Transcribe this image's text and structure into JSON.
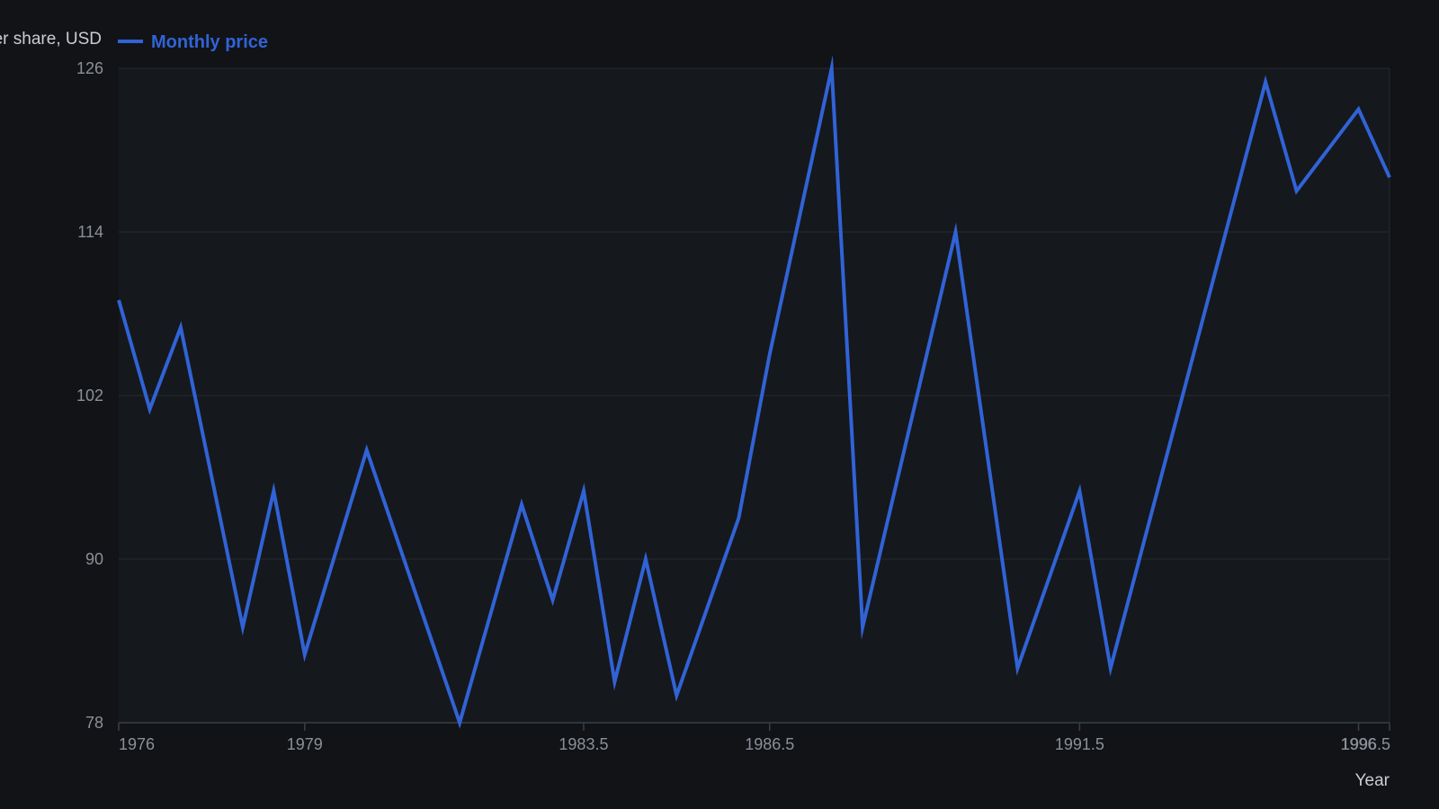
{
  "chart_data": {
    "type": "line",
    "xlabel": "Year",
    "ylabel": "Price per share, USD",
    "ylim": [
      78,
      126
    ],
    "xlim": [
      1976,
      1996.5
    ],
    "y_ticks": [
      78,
      90,
      102,
      114,
      126
    ],
    "x_ticks": [
      1976,
      1979,
      1983.5,
      1986.5,
      1991.5,
      1996,
      1996.5
    ],
    "grid": "horizontal",
    "legend_position": "top-left",
    "colors": {
      "background": "#111317",
      "plot_background": "#15181d",
      "line": "#3163d6",
      "grid": "#262a30",
      "axis": "#3a3f46"
    },
    "series": [
      {
        "name": "Monthly price",
        "x": [
          1976,
          1976.5,
          1977,
          1978,
          1978.5,
          1979,
          1980,
          1981.5,
          1982.5,
          1983,
          1983.5,
          1984,
          1984.5,
          1985,
          1986,
          1986.5,
          1987.5,
          1988,
          1989.5,
          1990.5,
          1991.5,
          1992,
          1994.5,
          1995,
          1996,
          1996.5
        ],
        "y": [
          109,
          101,
          107,
          85,
          95,
          83,
          98,
          78,
          94,
          87,
          95,
          81,
          90,
          80,
          93,
          105,
          126,
          85,
          114,
          82,
          95,
          82,
          125,
          117,
          123,
          118
        ]
      }
    ]
  }
}
